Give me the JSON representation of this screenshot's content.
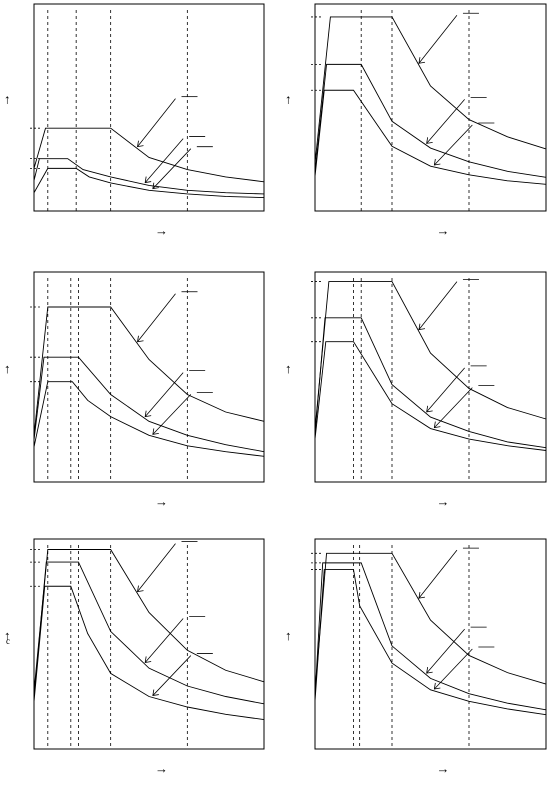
{
  "chart_data": [
    {
      "type": "line",
      "title": "",
      "xlabel": "",
      "ylabel": "",
      "series": [
        {
          "x": [
            0,
            0.15,
            0.32,
            1.0,
            1.5,
            2.0,
            2.5,
            3.0
          ],
          "y": [
            0.35,
            0.68,
            0.68,
            0.68,
            0.44,
            0.34,
            0.28,
            0.24
          ]
        },
        {
          "x": [
            0,
            0.07,
            0.44,
            0.64,
            1.0,
            1.5,
            2.0,
            2.5,
            3.0
          ],
          "y": [
            0.25,
            0.43,
            0.43,
            0.34,
            0.28,
            0.21,
            0.17,
            0.15,
            0.14
          ]
        },
        {
          "x": [
            0,
            0.18,
            0.55,
            0.72,
            1.0,
            1.5,
            2.0,
            2.5,
            3.0
          ],
          "y": [
            0.15,
            0.35,
            0.35,
            0.28,
            0.23,
            0.17,
            0.14,
            0.12,
            0.11
          ]
        }
      ],
      "vlines": [
        0.18,
        0.55,
        1.0,
        2.0
      ],
      "xlim": [
        0,
        3
      ],
      "ylim": [
        0,
        1.7
      ],
      "grid": false
    },
    {
      "type": "line",
      "title": "",
      "xlabel": "",
      "ylabel": "",
      "series": [
        {
          "x": [
            0,
            0.2,
            1.0,
            1.5,
            2.0,
            2.5,
            3.0
          ],
          "y": [
            0.55,
            2.25,
            2.25,
            1.45,
            1.06,
            0.86,
            0.72
          ]
        },
        {
          "x": [
            0,
            0.15,
            0.6,
            1.0,
            1.5,
            2.0,
            2.5,
            3.0
          ],
          "y": [
            0.45,
            1.7,
            1.7,
            1.04,
            0.73,
            0.57,
            0.46,
            0.39
          ]
        },
        {
          "x": [
            0,
            0.12,
            0.5,
            1.0,
            1.5,
            2.0,
            2.5,
            3.0
          ],
          "y": [
            0.4,
            1.4,
            1.4,
            0.75,
            0.52,
            0.42,
            0.35,
            0.31
          ]
        }
      ],
      "vlines": [
        0.6,
        1.0,
        2.0
      ],
      "xlim": [
        0,
        3
      ],
      "ylim": [
        0,
        2.4
      ],
      "grid": false
    },
    {
      "type": "line",
      "title": "",
      "xlabel": "",
      "ylabel": "",
      "series": [
        {
          "x": [
            0,
            0.18,
            1.0,
            1.5,
            2.0,
            2.5,
            3.0
          ],
          "y": [
            0.4,
            1.5,
            1.5,
            1.05,
            0.75,
            0.6,
            0.52
          ]
        },
        {
          "x": [
            0,
            0.13,
            0.58,
            1.0,
            1.5,
            2.0,
            2.5,
            3.0
          ],
          "y": [
            0.36,
            1.07,
            1.07,
            0.75,
            0.52,
            0.4,
            0.32,
            0.26
          ]
        },
        {
          "x": [
            0,
            0.18,
            0.5,
            0.7,
            1.0,
            1.5,
            2.0,
            2.5,
            3.0
          ],
          "y": [
            0.3,
            0.86,
            0.86,
            0.7,
            0.56,
            0.4,
            0.31,
            0.26,
            0.22
          ]
        }
      ],
      "vlines": [
        0.18,
        0.48,
        0.58,
        1.0,
        2.0
      ],
      "xlim": [
        0,
        3
      ],
      "ylim": [
        0,
        1.8
      ],
      "grid": false
    },
    {
      "type": "line",
      "title": "",
      "xlabel": "",
      "ylabel": "",
      "series": [
        {
          "x": [
            0,
            0.18,
            1.0,
            1.5,
            2.0,
            2.5,
            3.0
          ],
          "y": [
            0.55,
            2.1,
            2.1,
            1.35,
            0.98,
            0.78,
            0.66
          ]
        },
        {
          "x": [
            0,
            0.13,
            0.6,
            1.0,
            1.5,
            2.0,
            2.5,
            3.0
          ],
          "y": [
            0.5,
            1.72,
            1.72,
            1.02,
            0.68,
            0.53,
            0.42,
            0.36
          ]
        },
        {
          "x": [
            0,
            0.14,
            0.5,
            1.0,
            1.5,
            2.0,
            2.5,
            3.0
          ],
          "y": [
            0.45,
            1.47,
            1.47,
            0.82,
            0.56,
            0.45,
            0.38,
            0.33
          ]
        }
      ],
      "vlines": [
        0.5,
        0.6,
        1.0,
        2.0
      ],
      "xlim": [
        0,
        3
      ],
      "ylim": [
        0,
        2.2
      ],
      "grid": false
    },
    {
      "type": "line",
      "title": "",
      "xlabel": "",
      "ylabel": "",
      "series": [
        {
          "x": [
            0,
            0.18,
            1.0,
            1.5,
            2.0,
            2.5,
            3.0
          ],
          "y": [
            0.55,
            1.9,
            1.9,
            1.3,
            0.94,
            0.75,
            0.64
          ]
        },
        {
          "x": [
            0,
            0.16,
            0.58,
            1.0,
            1.5,
            2.0,
            2.5,
            3.0
          ],
          "y": [
            0.5,
            1.78,
            1.78,
            1.12,
            0.77,
            0.6,
            0.5,
            0.43
          ]
        },
        {
          "x": [
            0,
            0.14,
            0.48,
            0.7,
            1.0,
            1.5,
            2.0,
            2.5,
            3.0
          ],
          "y": [
            0.45,
            1.55,
            1.55,
            1.1,
            0.72,
            0.5,
            0.4,
            0.33,
            0.28
          ]
        }
      ],
      "vlines": [
        0.18,
        0.48,
        0.58,
        1.0,
        2.0
      ],
      "xlim": [
        0,
        3
      ],
      "ylim": [
        0,
        2.0
      ],
      "grid": false
    },
    {
      "type": "line",
      "title": "",
      "xlabel": "",
      "ylabel": "",
      "series": [
        {
          "x": [
            0,
            0.15,
            1.0,
            1.5,
            2.0,
            2.5,
            3.0
          ],
          "y": [
            0.6,
            2.05,
            2.05,
            1.35,
            0.98,
            0.8,
            0.68
          ]
        },
        {
          "x": [
            0,
            0.1,
            0.6,
            1.0,
            1.5,
            2.0,
            2.5,
            3.0
          ],
          "y": [
            0.55,
            1.95,
            1.95,
            1.08,
            0.74,
            0.58,
            0.48,
            0.41
          ]
        },
        {
          "x": [
            0,
            0.12,
            0.5,
            0.58,
            1.0,
            1.5,
            2.0,
            2.5,
            3.0
          ],
          "y": [
            0.5,
            1.88,
            1.88,
            1.5,
            0.9,
            0.62,
            0.5,
            0.42,
            0.36
          ]
        }
      ],
      "vlines": [
        0.5,
        0.58,
        1.0,
        2.0
      ],
      "xlim": [
        0,
        3
      ],
      "ylim": [
        0,
        2.2
      ],
      "grid": false
    }
  ],
  "figure": {
    "ylabel_glyph": "↑",
    "xlabel_glyph": "→",
    "stray_glyph": "c"
  }
}
